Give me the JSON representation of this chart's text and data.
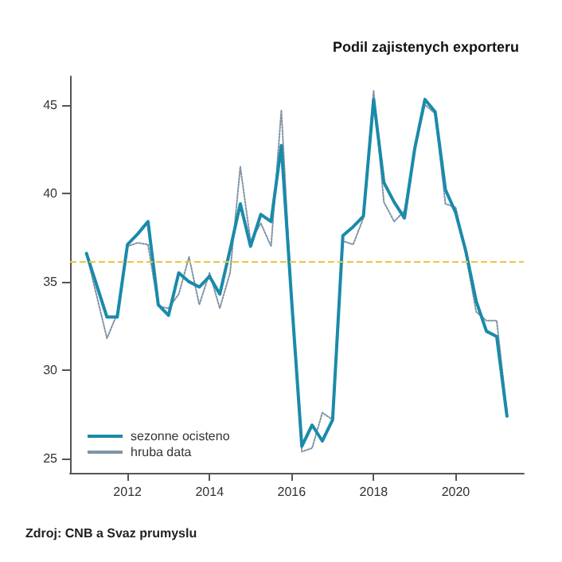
{
  "chart_data": {
    "type": "line",
    "title": "Podil zajistenych exporteru",
    "x": [
      2011.0,
      2011.25,
      2011.5,
      2011.75,
      2012.0,
      2012.25,
      2012.5,
      2012.75,
      2013.0,
      2013.25,
      2013.5,
      2013.75,
      2014.0,
      2014.25,
      2014.5,
      2014.75,
      2015.0,
      2015.25,
      2015.5,
      2015.75,
      2016.0,
      2016.25,
      2016.5,
      2016.75,
      2017.0,
      2017.25,
      2017.5,
      2017.75,
      2018.0,
      2018.25,
      2018.5,
      2018.75,
      2019.0,
      2019.25,
      2019.5,
      2019.75,
      2020.0,
      2020.25,
      2020.5,
      2020.75,
      2021.0,
      2021.25
    ],
    "series": [
      {
        "name": "sezonne ocisteno",
        "color": "#1b8aaa",
        "line_style": "solid",
        "values": [
          36.6,
          34.8,
          33.0,
          33.0,
          37.1,
          37.7,
          38.4,
          33.7,
          33.1,
          35.5,
          35.0,
          34.7,
          35.3,
          34.3,
          36.8,
          39.4,
          37.0,
          38.8,
          38.4,
          42.7,
          34.0,
          25.7,
          26.9,
          26.0,
          27.2,
          37.6,
          38.1,
          38.7,
          45.3,
          40.6,
          39.5,
          38.6,
          42.5,
          45.3,
          44.6,
          40.2,
          38.9,
          36.7,
          33.9,
          32.2,
          31.9,
          27.4
        ]
      },
      {
        "name": "hruba data",
        "color": "#7f93a6",
        "line_style": "dotted",
        "values": [
          36.6,
          34.2,
          31.8,
          33.2,
          37.0,
          37.2,
          37.1,
          33.6,
          33.5,
          34.3,
          36.4,
          33.7,
          35.5,
          33.5,
          35.5,
          41.5,
          37.3,
          38.3,
          37.0,
          44.7,
          34.0,
          25.4,
          25.6,
          27.6,
          27.2,
          37.3,
          37.1,
          38.6,
          45.8,
          39.5,
          38.4,
          39.0,
          42.5,
          45.0,
          44.5,
          39.4,
          39.2,
          36.5,
          33.3,
          32.8,
          32.8,
          27.6
        ]
      }
    ],
    "xlim": [
      2010.6,
      2021.66
    ],
    "xticks": [
      2012,
      2014,
      2016,
      2018,
      2020
    ],
    "ylim": [
      24.2,
      46.6
    ],
    "yticks": [
      25,
      30,
      35,
      40,
      45
    ],
    "ref_lines": [
      {
        "axis": "y",
        "value": 36.1,
        "color": "#e8c840",
        "line_style": "dashed"
      }
    ],
    "annotations": [
      "Zdroj: CNB a Svaz prumyslu"
    ],
    "legend": "bottom left",
    "grid": false,
    "marker": "none"
  }
}
